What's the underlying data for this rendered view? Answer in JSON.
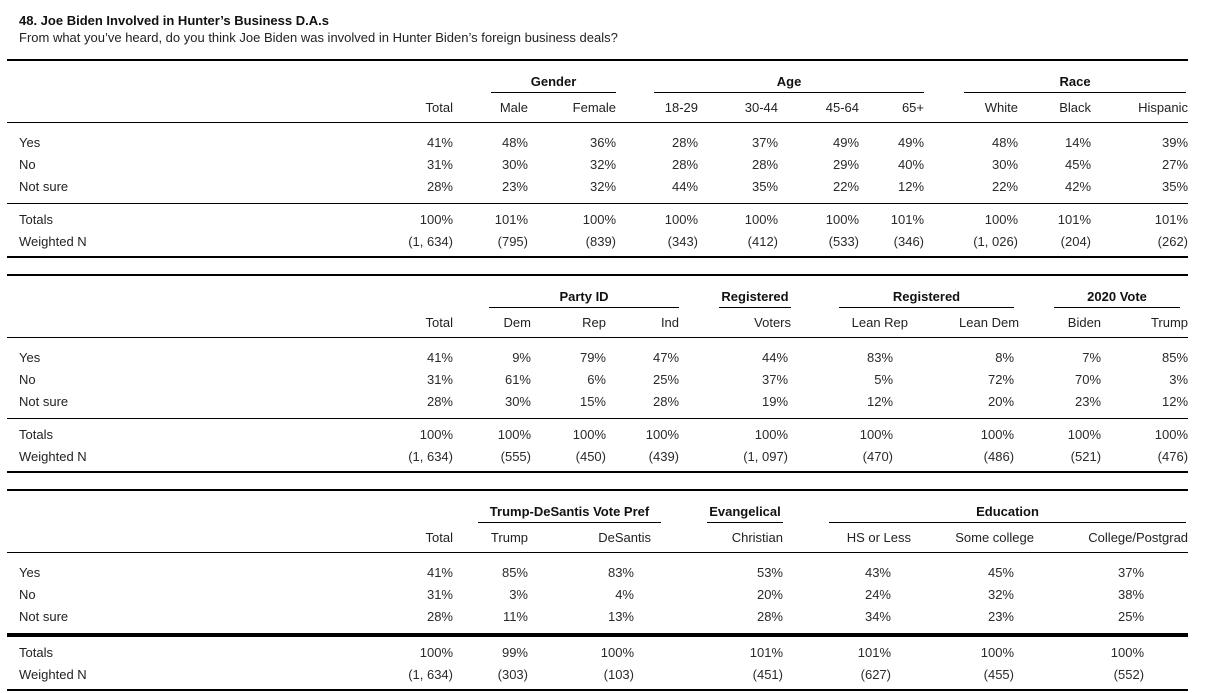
{
  "page": {
    "title": "48. Joe Biden Involved in Hunter’s Business D.A.s",
    "subtitle": "From what you’ve heard, do you think Joe Biden was involved in Hunter Biden’s foreign business deals?"
  },
  "tables": [
    {
      "name": "demographics-crosstab",
      "groups": [
        "Gender",
        "Age",
        "Race"
      ],
      "columns": [
        "Total",
        "Male",
        "Female",
        "18-29",
        "30-44",
        "45-64",
        "65+",
        "White",
        "Black",
        "Hispanic"
      ],
      "rows": [
        {
          "label": "Yes",
          "values": [
            "41%",
            "48%",
            "36%",
            "28%",
            "37%",
            "49%",
            "49%",
            "48%",
            "14%",
            "39%"
          ]
        },
        {
          "label": "No",
          "values": [
            "31%",
            "30%",
            "32%",
            "28%",
            "28%",
            "29%",
            "40%",
            "30%",
            "45%",
            "27%"
          ]
        },
        {
          "label": "Not sure",
          "values": [
            "28%",
            "23%",
            "32%",
            "44%",
            "35%",
            "22%",
            "12%",
            "22%",
            "42%",
            "35%"
          ]
        }
      ],
      "footer_rows": [
        {
          "label": "Totals",
          "values": [
            "100%",
            "101%",
            "100%",
            "100%",
            "100%",
            "100%",
            "101%",
            "100%",
            "101%",
            "101%"
          ]
        },
        {
          "label": "Weighted N",
          "values": [
            "(1, 634)",
            "(795)",
            "(839)",
            "(343)",
            "(412)",
            "(533)",
            "(346)",
            "(1, 026)",
            "(204)",
            "(262)"
          ]
        }
      ]
    },
    {
      "name": "party-registration-crosstab",
      "groups": [
        "Party ID",
        "Registered",
        "Registered",
        "2020 Vote"
      ],
      "columns": [
        "Total",
        "Dem",
        "Rep",
        "Ind",
        "Voters",
        "Lean Rep",
        "Lean Dem",
        "Biden",
        "Trump"
      ],
      "rows": [
        {
          "label": "Yes",
          "values": [
            "41%",
            "9%",
            "79%",
            "47%",
            "44%",
            "83%",
            "8%",
            "7%",
            "85%"
          ]
        },
        {
          "label": "No",
          "values": [
            "31%",
            "61%",
            "6%",
            "25%",
            "37%",
            "5%",
            "72%",
            "70%",
            "3%"
          ]
        },
        {
          "label": "Not sure",
          "values": [
            "28%",
            "30%",
            "15%",
            "28%",
            "19%",
            "12%",
            "20%",
            "23%",
            "12%"
          ]
        }
      ],
      "footer_rows": [
        {
          "label": "Totals",
          "values": [
            "100%",
            "100%",
            "100%",
            "100%",
            "100%",
            "100%",
            "100%",
            "100%",
            "100%"
          ]
        },
        {
          "label": "Weighted N",
          "values": [
            "(1, 634)",
            "(555)",
            "(450)",
            "(439)",
            "(1, 097)",
            "(470)",
            "(486)",
            "(521)",
            "(476)"
          ]
        }
      ]
    },
    {
      "name": "vote-pref-religion-education-crosstab",
      "groups": [
        "Trump-DeSantis Vote Pref",
        "Evangelical",
        "Education"
      ],
      "columns": [
        "Total",
        "Trump",
        "DeSantis",
        "Christian",
        "HS or Less",
        "Some college",
        "College/Postgrad"
      ],
      "rows": [
        {
          "label": "Yes",
          "values": [
            "41%",
            "85%",
            "83%",
            "53%",
            "43%",
            "45%",
            "37%"
          ]
        },
        {
          "label": "No",
          "values": [
            "31%",
            "3%",
            "4%",
            "20%",
            "24%",
            "32%",
            "38%"
          ]
        },
        {
          "label": "Not sure",
          "values": [
            "28%",
            "11%",
            "13%",
            "28%",
            "34%",
            "23%",
            "25%"
          ]
        }
      ],
      "footer_rows": [
        {
          "label": "Totals",
          "values": [
            "100%",
            "99%",
            "100%",
            "101%",
            "101%",
            "100%",
            "100%"
          ]
        },
        {
          "label": "Weighted N",
          "values": [
            "(1, 634)",
            "(303)",
            "(103)",
            "(451)",
            "(627)",
            "(455)",
            "(552)"
          ]
        }
      ]
    }
  ]
}
